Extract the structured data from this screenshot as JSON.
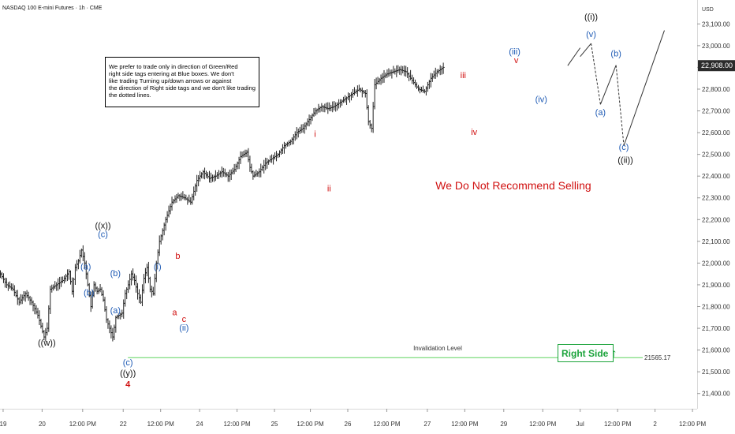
{
  "header": {
    "title": "NASDAQ 100 E-mini Futures · 1h · CME",
    "currency": "USD"
  },
  "note": {
    "lines": [
      "We prefer to trade only in direction of Green/Red",
      "right side tags entering at Blue boxes. We don't",
      "like trading Turning up/down arrows or against",
      "the direction of Right side tags and we don't like trading",
      "the dotted lines."
    ]
  },
  "headline": "We Do Not Recommend Selling",
  "badge": {
    "label": "Right Side",
    "arrow": "↑"
  },
  "invalidation": {
    "label": "Invalidation Level",
    "value": 21565.17,
    "value_label": "21565.17"
  },
  "colors": {
    "bars": "#222222",
    "red": "#d01010",
    "blue": "#1f5bb5",
    "black": "#111111",
    "green": "#1aa33a",
    "line": "#5fd35f",
    "price_tag": "#2b2b2b"
  },
  "chart_data": {
    "type": "ohlc",
    "title": "NASDAQ 100 E-mini Futures · 1h · CME",
    "ylabel": "USD",
    "ylim": [
      21330,
      23210
    ],
    "y_ticks": [
      23100,
      23000,
      22900,
      22800,
      22700,
      22600,
      22500,
      22400,
      22300,
      22200,
      22100,
      22000,
      21900,
      21800,
      21700,
      21600,
      21500,
      21400
    ],
    "y_tick_labels": [
      "23,100.00",
      "23,000.00",
      "",
      "22,800.00",
      "22,700.00",
      "22,600.00",
      "22,500.00",
      "22,400.00",
      "22,300.00",
      "22,200.00",
      "22,100.00",
      "22,000.00",
      "21,900.00",
      "21,800.00",
      "21,700.00",
      "21,600.00",
      "21,500.00",
      "21,400.00"
    ],
    "last_price": 22908.0,
    "last_price_label": "22,908.00",
    "x_ticks": [
      "19",
      "20",
      "12:00 PM",
      "22",
      "12:00 PM",
      "24",
      "12:00 PM",
      "25",
      "12:00 PM",
      "26",
      "12:00 PM",
      "27",
      "12:00 PM",
      "29",
      "12:00 PM",
      "Jul",
      "12:00 PM",
      "2",
      "12:00 PM"
    ],
    "x_tick_slots": [
      2,
      27,
      53,
      79,
      103,
      128,
      152,
      176,
      199,
      223,
      248,
      274,
      298,
      323,
      348,
      372,
      396,
      420,
      444
    ],
    "price_path": [
      [
        0,
        21950
      ],
      [
        4,
        21900
      ],
      [
        8,
        21880
      ],
      [
        12,
        21820
      ],
      [
        16,
        21860
      ],
      [
        20,
        21820
      ],
      [
        24,
        21760
      ],
      [
        28,
        21660
      ],
      [
        30,
        21700
      ],
      [
        32,
        21880
      ],
      [
        36,
        21900
      ],
      [
        40,
        21920
      ],
      [
        44,
        21960
      ],
      [
        46,
        21870
      ],
      [
        48,
        21980
      ],
      [
        50,
        22010
      ],
      [
        52,
        22060
      ],
      [
        54,
        22000
      ],
      [
        56,
        21900
      ],
      [
        58,
        21800
      ],
      [
        60,
        21900
      ],
      [
        62,
        21870
      ],
      [
        64,
        21880
      ],
      [
        66,
        21830
      ],
      [
        68,
        21740
      ],
      [
        70,
        21700
      ],
      [
        72,
        21660
      ],
      [
        74,
        21750
      ],
      [
        76,
        21760
      ],
      [
        78,
        21770
      ],
      [
        80,
        21860
      ],
      [
        82,
        21900
      ],
      [
        84,
        21950
      ],
      [
        86,
        21920
      ],
      [
        88,
        21860
      ],
      [
        90,
        21820
      ],
      [
        92,
        21930
      ],
      [
        94,
        21980
      ],
      [
        96,
        21880
      ],
      [
        98,
        21860
      ],
      [
        100,
        22000
      ],
      [
        102,
        22100
      ],
      [
        104,
        22150
      ],
      [
        106,
        22200
      ],
      [
        110,
        22280
      ],
      [
        114,
        22310
      ],
      [
        118,
        22300
      ],
      [
        122,
        22280
      ],
      [
        126,
        22380
      ],
      [
        130,
        22420
      ],
      [
        134,
        22390
      ],
      [
        138,
        22400
      ],
      [
        142,
        22420
      ],
      [
        146,
        22400
      ],
      [
        150,
        22430
      ],
      [
        154,
        22490
      ],
      [
        158,
        22510
      ],
      [
        160,
        22440
      ],
      [
        162,
        22400
      ],
      [
        166,
        22420
      ],
      [
        170,
        22460
      ],
      [
        174,
        22480
      ],
      [
        178,
        22500
      ],
      [
        182,
        22540
      ],
      [
        186,
        22560
      ],
      [
        190,
        22600
      ],
      [
        194,
        22620
      ],
      [
        198,
        22660
      ],
      [
        202,
        22700
      ],
      [
        206,
        22720
      ],
      [
        210,
        22710
      ],
      [
        214,
        22720
      ],
      [
        218,
        22740
      ],
      [
        222,
        22760
      ],
      [
        226,
        22780
      ],
      [
        230,
        22800
      ],
      [
        234,
        22780
      ],
      [
        236,
        22650
      ],
      [
        238,
        22620
      ],
      [
        240,
        22820
      ],
      [
        244,
        22850
      ],
      [
        248,
        22870
      ],
      [
        252,
        22880
      ],
      [
        256,
        22890
      ],
      [
        260,
        22880
      ],
      [
        264,
        22840
      ],
      [
        268,
        22800
      ],
      [
        272,
        22790
      ],
      [
        276,
        22850
      ],
      [
        280,
        22880
      ],
      [
        284,
        22900
      ]
    ],
    "wave_labels": [
      {
        "text": "((x))",
        "x": 66,
        "y": 22160,
        "color": "black"
      },
      {
        "text": "(c)",
        "x": 66,
        "y": 22120,
        "color": "blue"
      },
      {
        "text": "(a)",
        "x": 55,
        "y": 21970,
        "color": "blue"
      },
      {
        "text": "(b)",
        "x": 57,
        "y": 21850,
        "color": "blue"
      },
      {
        "text": "(b)",
        "x": 74,
        "y": 21940,
        "color": "blue"
      },
      {
        "text": "(a)",
        "x": 74,
        "y": 21770,
        "color": "blue"
      },
      {
        "text": "((w))",
        "x": 30,
        "y": 21620,
        "color": "black"
      },
      {
        "text": "(c)",
        "x": 82,
        "y": 21530,
        "color": "blue"
      },
      {
        "text": "((y))",
        "x": 82,
        "y": 21480,
        "color": "black"
      },
      {
        "text": "4",
        "x": 82,
        "y": 21430,
        "color": "red"
      },
      {
        "text": "(i)",
        "x": 101,
        "y": 21970,
        "color": "blue"
      },
      {
        "text": "b",
        "x": 114,
        "y": 22020,
        "color": "red"
      },
      {
        "text": "a",
        "x": 112,
        "y": 21760,
        "color": "red"
      },
      {
        "text": "c",
        "x": 118,
        "y": 21730,
        "color": "red"
      },
      {
        "text": "(ii)",
        "x": 118,
        "y": 21690,
        "color": "blue"
      },
      {
        "text": "i",
        "x": 202,
        "y": 22580,
        "color": "red"
      },
      {
        "text": "ii",
        "x": 211,
        "y": 22330,
        "color": "red"
      },
      {
        "text": "iii",
        "x": 297,
        "y": 22850,
        "color": "red"
      },
      {
        "text": "iv",
        "x": 304,
        "y": 22590,
        "color": "red"
      },
      {
        "text": "(iii)",
        "x": 330,
        "y": 22960,
        "color": "blue"
      },
      {
        "text": "v",
        "x": 331,
        "y": 22920,
        "color": "red"
      },
      {
        "text": "(iv)",
        "x": 347,
        "y": 22740,
        "color": "blue"
      },
      {
        "text": "((i))",
        "x": 379,
        "y": 23120,
        "color": "black"
      },
      {
        "text": "(v)",
        "x": 379,
        "y": 23040,
        "color": "blue"
      },
      {
        "text": "(b)",
        "x": 395,
        "y": 22950,
        "color": "blue"
      },
      {
        "text": "(a)",
        "x": 385,
        "y": 22680,
        "color": "blue"
      },
      {
        "text": "(c)",
        "x": 400,
        "y": 22520,
        "color": "blue"
      },
      {
        "text": "((ii))",
        "x": 401,
        "y": 22460,
        "color": "black"
      }
    ],
    "projection": {
      "solid_1": [
        [
          364,
          22908
        ],
        [
          372,
          22990
        ]
      ],
      "solid_2": [
        [
          372,
          22950
        ],
        [
          379,
          23010
        ]
      ],
      "dashed_1": [
        [
          379,
          23010
        ],
        [
          385,
          22730
        ]
      ],
      "solid_3": [
        [
          385,
          22730
        ],
        [
          395,
          22910
        ]
      ],
      "dashed_2": [
        [
          395,
          22910
        ],
        [
          400,
          22540
        ]
      ],
      "solid_4": [
        [
          400,
          22540
        ],
        [
          426,
          23070
        ]
      ]
    }
  }
}
